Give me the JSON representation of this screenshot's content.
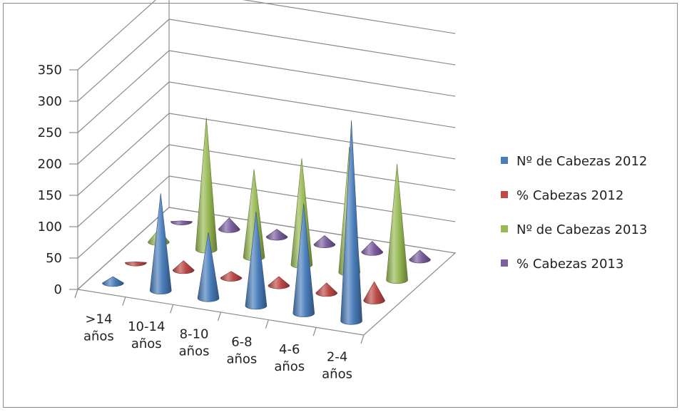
{
  "chart_data": {
    "type": "bar",
    "style": "3d-cone",
    "categories": [
      ">14 años",
      "10-14 años",
      "8-10 años",
      "6-8 años",
      "4-6 años",
      "2-4 años"
    ],
    "series": [
      {
        "name": "Nº de Cabezas 2012",
        "color": "#4a7ebb",
        "values": [
          10,
          155,
          105,
          150,
          175,
          320
        ]
      },
      {
        "name": "% Cabezas 2012",
        "color": "#be4b48",
        "values": [
          1,
          15,
          10,
          14,
          16,
          30
        ]
      },
      {
        "name": "Nº de Cabezas 2013",
        "color": "#98b954",
        "values": [
          20,
          210,
          140,
          170,
          200,
          185
        ]
      },
      {
        "name": "% Cabezas 2013",
        "color": "#7d60a0",
        "values": [
          1,
          18,
          12,
          14,
          17,
          15
        ]
      }
    ],
    "yticks": [
      "0",
      "50",
      "100",
      "150",
      "200",
      "250",
      "300",
      "350"
    ],
    "ylim": [
      0,
      350
    ],
    "grid": true,
    "legend_position": "right"
  }
}
